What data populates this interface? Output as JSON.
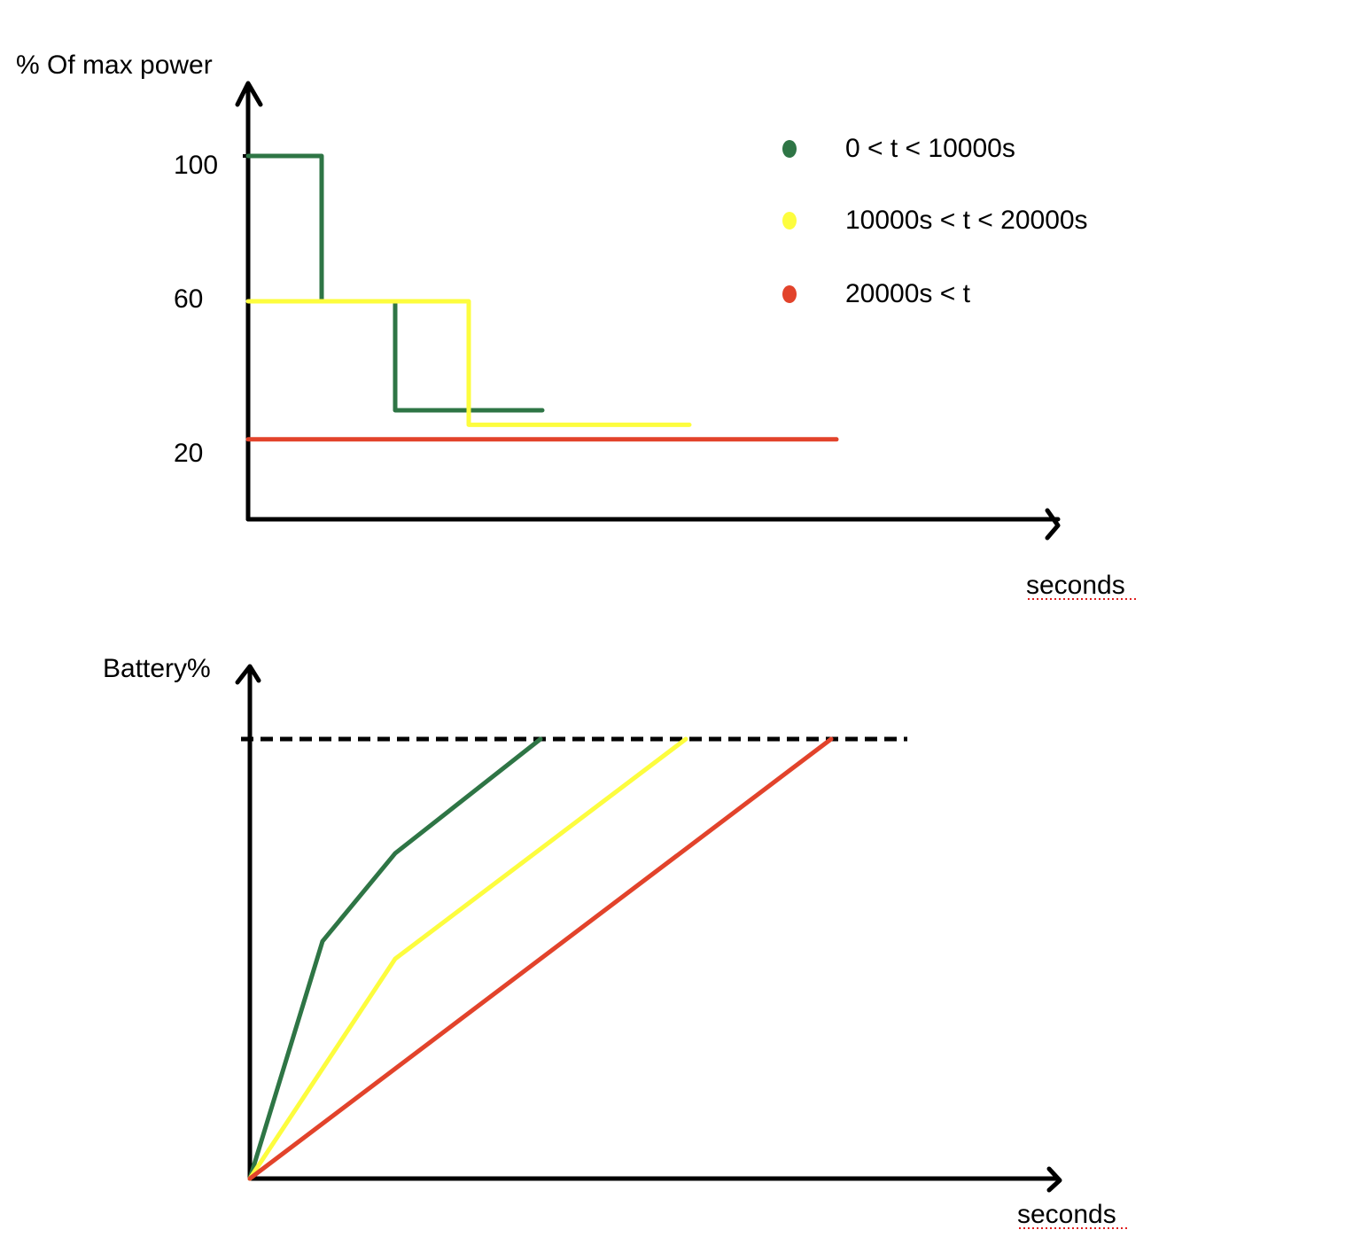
{
  "chart_data": [
    {
      "type": "line",
      "title": "",
      "ylabel": "% Of max power",
      "xlabel": "seconds",
      "y_ticks": [
        "100",
        "60",
        "20"
      ],
      "ylim": [
        0,
        120
      ],
      "legend": {
        "placement": "top-right",
        "entries": [
          {
            "label": "0 < t < 10000s",
            "color": "#2e7545"
          },
          {
            "label": "10000s < t < 20000s",
            "color": "#fdfd3e"
          },
          {
            "label": "20000s < t",
            "color": "#e2432b"
          }
        ]
      },
      "series": [
        {
          "color": "#2e7545",
          "points": [
            [
              0,
              100
            ],
            [
              1,
              100
            ],
            [
              1,
              60
            ],
            [
              2,
              60
            ],
            [
              2,
              30
            ],
            [
              4,
              30
            ]
          ]
        },
        {
          "color": "#fdfd3e",
          "points": [
            [
              0,
              60
            ],
            [
              3,
              60
            ],
            [
              3,
              26
            ],
            [
              6,
              26
            ]
          ]
        },
        {
          "color": "#e2432b",
          "points": [
            [
              0,
              22
            ],
            [
              8,
              22
            ]
          ]
        }
      ]
    },
    {
      "type": "line",
      "title": "",
      "ylabel": "Battery%",
      "xlabel": "seconds",
      "ylim": [
        0,
        100
      ],
      "max_reference_line": {
        "y": 100,
        "style": "dashed",
        "color": "#000000"
      },
      "series": [
        {
          "color": "#2e7545",
          "points": [
            [
              0,
              0
            ],
            [
              1,
              54
            ],
            [
              2,
              74
            ],
            [
              4,
              100
            ]
          ]
        },
        {
          "color": "#fdfd3e",
          "points": [
            [
              0,
              0
            ],
            [
              2,
              50
            ],
            [
              6,
              100
            ]
          ]
        },
        {
          "color": "#e2432b",
          "points": [
            [
              0,
              0
            ],
            [
              8,
              100
            ]
          ]
        }
      ]
    }
  ]
}
